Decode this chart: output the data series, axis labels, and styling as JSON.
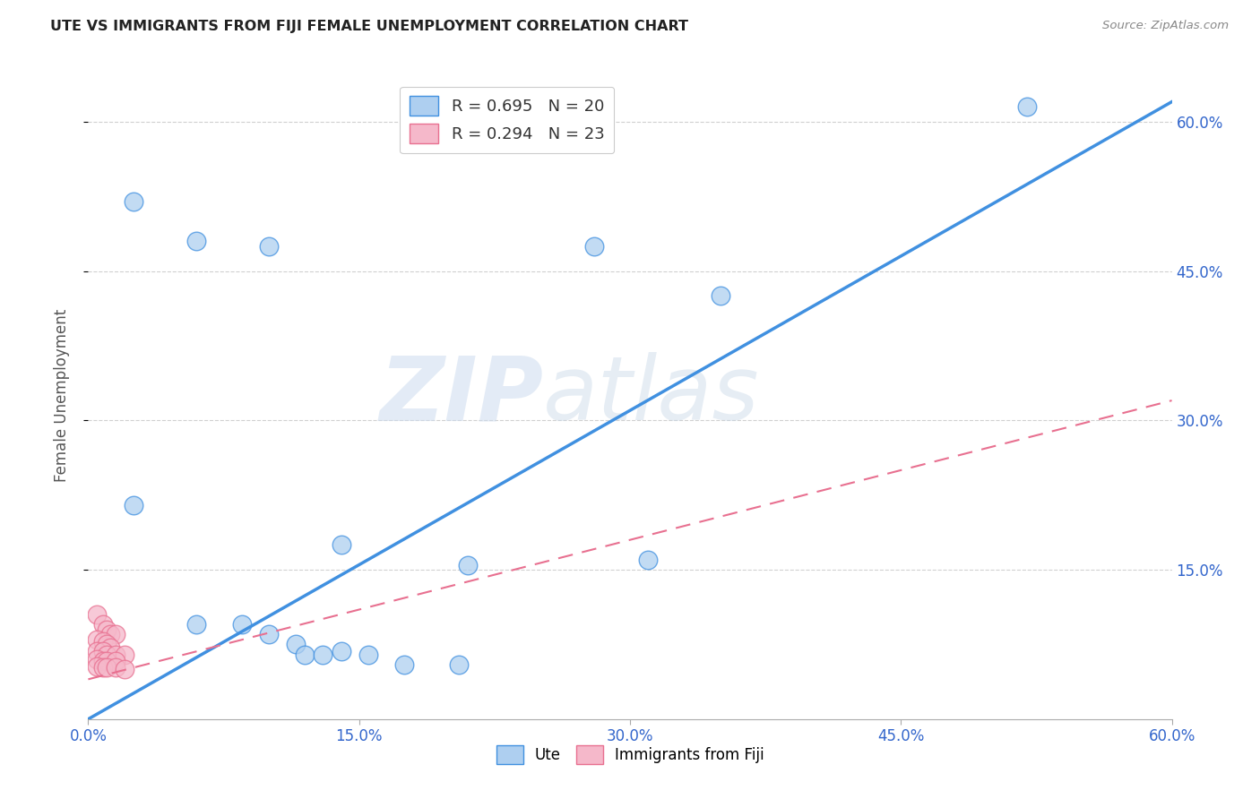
{
  "title": "UTE VS IMMIGRANTS FROM FIJI FEMALE UNEMPLOYMENT CORRELATION CHART",
  "source": "Source: ZipAtlas.com",
  "ylabel": "Female Unemployment",
  "legend_label1": "R = 0.695   N = 20",
  "legend_label2": "R = 0.294   N = 23",
  "legend_bottom1": "Ute",
  "legend_bottom2": "Immigrants from Fiji",
  "ute_color": "#aecff0",
  "fiji_color": "#f5b8ca",
  "ute_line_color": "#4090e0",
  "fiji_line_color": "#e87090",
  "watermark_zip": "ZIP",
  "watermark_atlas": "atlas",
  "ute_points": [
    [
      0.025,
      0.52
    ],
    [
      0.06,
      0.48
    ],
    [
      0.1,
      0.475
    ],
    [
      0.28,
      0.475
    ],
    [
      0.52,
      0.615
    ],
    [
      0.025,
      0.215
    ],
    [
      0.14,
      0.175
    ],
    [
      0.21,
      0.155
    ],
    [
      0.31,
      0.16
    ],
    [
      0.35,
      0.425
    ],
    [
      0.06,
      0.095
    ],
    [
      0.085,
      0.095
    ],
    [
      0.1,
      0.085
    ],
    [
      0.115,
      0.075
    ],
    [
      0.12,
      0.065
    ],
    [
      0.13,
      0.065
    ],
    [
      0.14,
      0.068
    ],
    [
      0.155,
      0.065
    ],
    [
      0.175,
      0.055
    ],
    [
      0.205,
      0.055
    ]
  ],
  "fiji_points": [
    [
      0.005,
      0.105
    ],
    [
      0.008,
      0.095
    ],
    [
      0.01,
      0.09
    ],
    [
      0.012,
      0.085
    ],
    [
      0.015,
      0.085
    ],
    [
      0.005,
      0.08
    ],
    [
      0.008,
      0.078
    ],
    [
      0.01,
      0.075
    ],
    [
      0.012,
      0.072
    ],
    [
      0.005,
      0.068
    ],
    [
      0.008,
      0.068
    ],
    [
      0.01,
      0.065
    ],
    [
      0.015,
      0.065
    ],
    [
      0.02,
      0.065
    ],
    [
      0.005,
      0.06
    ],
    [
      0.008,
      0.058
    ],
    [
      0.01,
      0.058
    ],
    [
      0.015,
      0.058
    ],
    [
      0.005,
      0.053
    ],
    [
      0.008,
      0.052
    ],
    [
      0.01,
      0.052
    ],
    [
      0.015,
      0.052
    ],
    [
      0.02,
      0.05
    ]
  ],
  "ute_line": [
    0.0,
    0.0,
    0.6,
    0.62
  ],
  "fiji_line": [
    0.0,
    0.04,
    0.6,
    0.32
  ],
  "xlim": [
    0.0,
    0.6
  ],
  "ylim": [
    0.0,
    0.65
  ],
  "x_ticks": [
    0.0,
    0.15,
    0.3,
    0.45,
    0.6
  ],
  "x_tick_labels": [
    "0.0%",
    "15.0%",
    "30.0%",
    "45.0%",
    "60.0%"
  ],
  "y_ticks": [
    0.15,
    0.3,
    0.45,
    0.6
  ],
  "y_tick_labels": [
    "15.0%",
    "30.0%",
    "45.0%",
    "60.0%"
  ],
  "grid_color": "#d0d0d0",
  "background_color": "#ffffff"
}
